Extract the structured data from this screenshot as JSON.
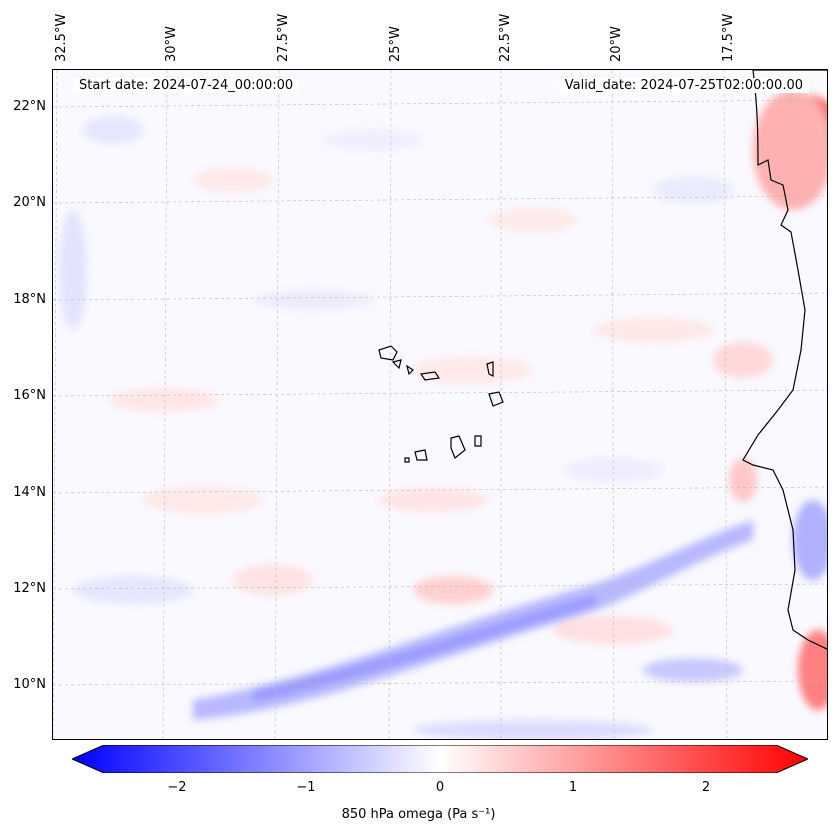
{
  "map": {
    "start_date": "Start date: 2024-07-24_00:00:00",
    "valid_date": "Valid_date: 2024-07-25T02:00:00.00",
    "lat_labels": [
      "22°N",
      "20°N",
      "18°N",
      "16°N",
      "14°N",
      "12°N",
      "10°N"
    ],
    "lon_labels": [
      "32.5°W",
      "30°W",
      "27.5°W",
      "25°W",
      "22.5°W",
      "20°W",
      "17.5°W"
    ]
  },
  "colorbar": {
    "label": "850 hPa omega (Pa s⁻¹)",
    "ticks": [
      "−2",
      "−1",
      "0",
      "1",
      "2"
    ],
    "min": -2.6,
    "max": 2.6,
    "colors": {
      "neg": "#0000ff",
      "mid": "#ffffff",
      "pos": "#ff0000"
    }
  }
}
